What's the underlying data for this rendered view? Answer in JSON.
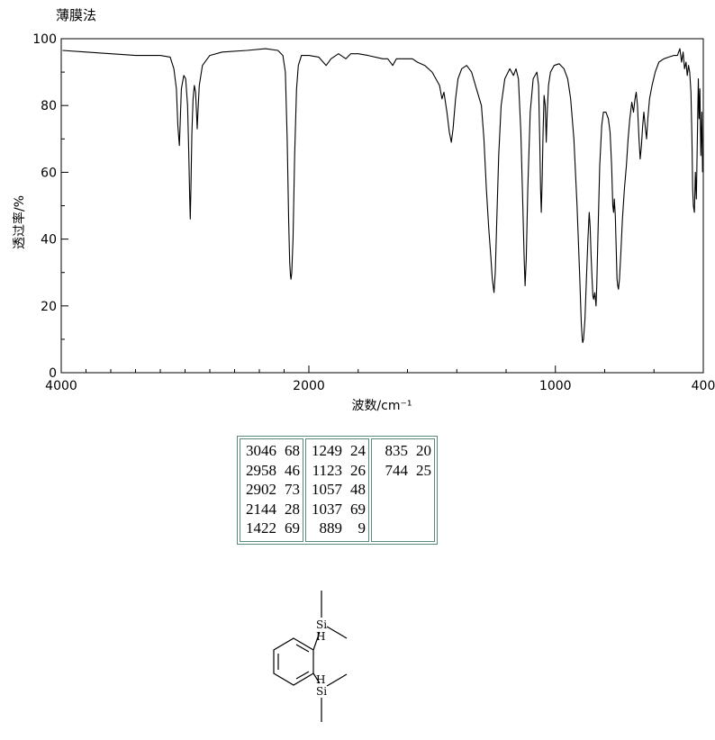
{
  "method_label": "薄膜法",
  "chart_data": {
    "type": "line",
    "title": "",
    "xlabel": "波数/cm⁻¹",
    "ylabel": "透过率/%",
    "xlim": [
      4000,
      400
    ],
    "ylim": [
      0,
      100
    ],
    "x_ticks": [
      4000,
      2000,
      1000,
      400
    ],
    "x_tick_labels": [
      "4000",
      "2000",
      "1000",
      "400"
    ],
    "y_ticks": [
      0,
      20,
      40,
      60,
      80,
      100
    ],
    "y_tick_labels": [
      "0",
      "20",
      "40",
      "60",
      "80",
      "100"
    ],
    "grid": false,
    "series": [
      {
        "name": "",
        "points": [
          [
            3990,
            96.5
          ],
          [
            3800,
            96
          ],
          [
            3600,
            95.5
          ],
          [
            3400,
            95
          ],
          [
            3200,
            95
          ],
          [
            3120,
            94.5
          ],
          [
            3090,
            91
          ],
          [
            3070,
            85
          ],
          [
            3058,
            74
          ],
          [
            3050,
            70
          ],
          [
            3046,
            68
          ],
          [
            3040,
            74
          ],
          [
            3030,
            85
          ],
          [
            3010,
            89
          ],
          [
            2995,
            88
          ],
          [
            2980,
            80
          ],
          [
            2970,
            66
          ],
          [
            2962,
            52
          ],
          [
            2958,
            46
          ],
          [
            2953,
            55
          ],
          [
            2945,
            72
          ],
          [
            2935,
            82
          ],
          [
            2925,
            86
          ],
          [
            2915,
            84
          ],
          [
            2908,
            78
          ],
          [
            2902,
            73
          ],
          [
            2896,
            78
          ],
          [
            2885,
            86
          ],
          [
            2860,
            92
          ],
          [
            2800,
            95
          ],
          [
            2700,
            96
          ],
          [
            2500,
            96.5
          ],
          [
            2350,
            97
          ],
          [
            2250,
            96.5
          ],
          [
            2210,
            95
          ],
          [
            2190,
            90
          ],
          [
            2175,
            70
          ],
          [
            2163,
            45
          ],
          [
            2155,
            33
          ],
          [
            2148,
            29
          ],
          [
            2144,
            28
          ],
          [
            2138,
            30
          ],
          [
            2128,
            40
          ],
          [
            2115,
            65
          ],
          [
            2100,
            85
          ],
          [
            2085,
            92
          ],
          [
            2060,
            95
          ],
          [
            2000,
            95
          ],
          [
            1960,
            94.5
          ],
          [
            1930,
            92
          ],
          [
            1910,
            94
          ],
          [
            1880,
            95.5
          ],
          [
            1850,
            94
          ],
          [
            1830,
            95.5
          ],
          [
            1800,
            95.5
          ],
          [
            1760,
            95
          ],
          [
            1700,
            94
          ],
          [
            1680,
            94
          ],
          [
            1660,
            92
          ],
          [
            1645,
            94
          ],
          [
            1610,
            94
          ],
          [
            1580,
            94
          ],
          [
            1560,
            93
          ],
          [
            1530,
            92
          ],
          [
            1500,
            90
          ],
          [
            1470,
            86
          ],
          [
            1460,
            82
          ],
          [
            1452,
            84
          ],
          [
            1440,
            78
          ],
          [
            1430,
            72
          ],
          [
            1422,
            69
          ],
          [
            1415,
            73
          ],
          [
            1405,
            82
          ],
          [
            1395,
            88
          ],
          [
            1380,
            91
          ],
          [
            1360,
            92
          ],
          [
            1340,
            90
          ],
          [
            1320,
            85
          ],
          [
            1300,
            80
          ],
          [
            1290,
            70
          ],
          [
            1280,
            55
          ],
          [
            1270,
            43
          ],
          [
            1262,
            35
          ],
          [
            1256,
            28
          ],
          [
            1249,
            24
          ],
          [
            1244,
            30
          ],
          [
            1238,
            45
          ],
          [
            1230,
            65
          ],
          [
            1220,
            80
          ],
          [
            1205,
            88
          ],
          [
            1185,
            91
          ],
          [
            1170,
            89
          ],
          [
            1160,
            91
          ],
          [
            1150,
            88
          ],
          [
            1140,
            72
          ],
          [
            1132,
            50
          ],
          [
            1127,
            35
          ],
          [
            1123,
            26
          ],
          [
            1118,
            34
          ],
          [
            1112,
            55
          ],
          [
            1102,
            78
          ],
          [
            1090,
            88
          ],
          [
            1075,
            90
          ],
          [
            1068,
            86
          ],
          [
            1063,
            68
          ],
          [
            1060,
            55
          ],
          [
            1057,
            48
          ],
          [
            1054,
            57
          ],
          [
            1050,
            72
          ],
          [
            1046,
            83
          ],
          [
            1041,
            80
          ],
          [
            1037,
            69
          ],
          [
            1033,
            78
          ],
          [
            1028,
            86
          ],
          [
            1020,
            90
          ],
          [
            1005,
            92
          ],
          [
            985,
            92.5
          ],
          [
            965,
            91
          ],
          [
            950,
            88
          ],
          [
            938,
            82
          ],
          [
            925,
            70
          ],
          [
            912,
            50
          ],
          [
            902,
            30
          ],
          [
            895,
            15
          ],
          [
            891,
            10
          ],
          [
            889,
            9
          ],
          [
            886,
            10
          ],
          [
            880,
            16
          ],
          [
            874,
            28
          ],
          [
            868,
            40
          ],
          [
            863,
            48
          ],
          [
            859,
            44
          ],
          [
            855,
            35
          ],
          [
            851,
            28
          ],
          [
            848,
            23
          ],
          [
            845,
            22
          ],
          [
            840,
            24
          ],
          [
            835,
            20
          ],
          [
            832,
            26
          ],
          [
            827,
            42
          ],
          [
            820,
            62
          ],
          [
            812,
            74
          ],
          [
            805,
            78
          ],
          [
            795,
            78
          ],
          [
            785,
            76
          ],
          [
            778,
            72
          ],
          [
            772,
            62
          ],
          [
            767,
            50
          ],
          [
            764,
            48
          ],
          [
            761,
            52
          ],
          [
            757,
            47
          ],
          [
            753,
            36
          ],
          [
            750,
            28
          ],
          [
            747,
            26
          ],
          [
            744,
            25
          ],
          [
            740,
            28
          ],
          [
            735,
            35
          ],
          [
            728,
            46
          ],
          [
            720,
            55
          ],
          [
            712,
            62
          ],
          [
            705,
            70
          ],
          [
            698,
            76
          ],
          [
            690,
            81
          ],
          [
            683,
            78
          ],
          [
            677,
            82
          ],
          [
            672,
            84
          ],
          [
            667,
            80
          ],
          [
            661,
            70
          ],
          [
            656,
            64
          ],
          [
            651,
            68
          ],
          [
            646,
            74
          ],
          [
            641,
            78
          ],
          [
            636,
            74
          ],
          [
            630,
            70
          ],
          [
            625,
            76
          ],
          [
            618,
            82
          ],
          [
            608,
            86
          ],
          [
            595,
            90
          ],
          [
            580,
            93
          ],
          [
            560,
            94
          ],
          [
            540,
            94.5
          ],
          [
            520,
            95
          ],
          [
            505,
            95
          ],
          [
            495,
            97
          ],
          [
            488,
            93
          ],
          [
            482,
            96
          ],
          [
            476,
            91
          ],
          [
            470,
            93
          ],
          [
            465,
            89
          ],
          [
            460,
            92
          ],
          [
            455,
            90
          ],
          [
            450,
            84
          ],
          [
            446,
            70
          ],
          [
            443,
            55
          ],
          [
            440,
            50
          ],
          [
            436,
            48
          ],
          [
            432,
            60
          ],
          [
            428,
            52
          ],
          [
            424,
            70
          ],
          [
            420,
            88
          ],
          [
            417,
            76
          ],
          [
            414,
            85
          ],
          [
            410,
            65
          ],
          [
            406,
            78
          ],
          [
            403,
            60
          ]
        ]
      }
    ]
  },
  "peak_table": {
    "columns": [
      [
        {
          "wn": "3046",
          "t": "68"
        },
        {
          "wn": "2958",
          "t": "46"
        },
        {
          "wn": "2902",
          "t": "73"
        },
        {
          "wn": "2144",
          "t": "28"
        },
        {
          "wn": "1422",
          "t": "69"
        }
      ],
      [
        {
          "wn": "1249",
          "t": "24"
        },
        {
          "wn": "1123",
          "t": "26"
        },
        {
          "wn": "1057",
          "t": "48"
        },
        {
          "wn": "1037",
          "t": "69"
        },
        {
          "wn": "889",
          "t": "9"
        }
      ],
      [
        {
          "wn": "835",
          "t": "20"
        },
        {
          "wn": "744",
          "t": "25"
        }
      ]
    ]
  },
  "structure": {
    "atom_si": "Si",
    "atom_h": "H"
  }
}
